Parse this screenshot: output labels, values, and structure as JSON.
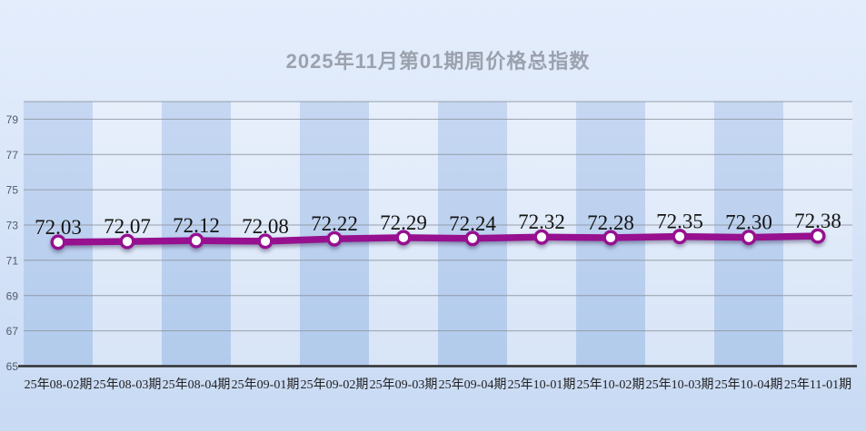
{
  "title": "2025年11月第01期周价格总指数",
  "chart_data": {
    "type": "line",
    "title": "2025年11月第01期周价格总指数",
    "categories": [
      "25年08-02期",
      "25年08-03期",
      "25年08-04期",
      "25年09-01期",
      "25年09-02期",
      "25年09-03期",
      "25年09-04期",
      "25年10-01期",
      "25年10-02期",
      "25年10-03期",
      "25年10-04期",
      "25年11-01期"
    ],
    "values": [
      72.03,
      72.07,
      72.12,
      72.08,
      72.22,
      72.29,
      72.24,
      72.32,
      72.28,
      72.35,
      72.3,
      72.38
    ],
    "value_labels": [
      "72.03",
      "72.07",
      "72.12",
      "72.08",
      "72.22",
      "72.29",
      "72.24",
      "72.32",
      "72.28",
      "72.35",
      "72.30",
      "72.38"
    ],
    "xlabel": "",
    "ylabel": "",
    "ylim": [
      65,
      80
    ],
    "yticks": [
      65,
      67,
      69,
      71,
      73,
      75,
      77,
      79
    ],
    "grid": true,
    "legend_position": "none",
    "colors": {
      "line": "#96108F",
      "marker_fill": "#FCFDFF",
      "band_dark_top": "#C6D7F2",
      "band_dark_bottom": "#B2CBEC",
      "band_light_top": "#E7EFFB",
      "band_light_bottom": "#D8E5F7",
      "gridline": "#8C949E",
      "axis_line": "#2F2F2F",
      "title_text": "#9BA2AE",
      "ytick_text": "#525A68",
      "label_text": "#141414"
    }
  }
}
